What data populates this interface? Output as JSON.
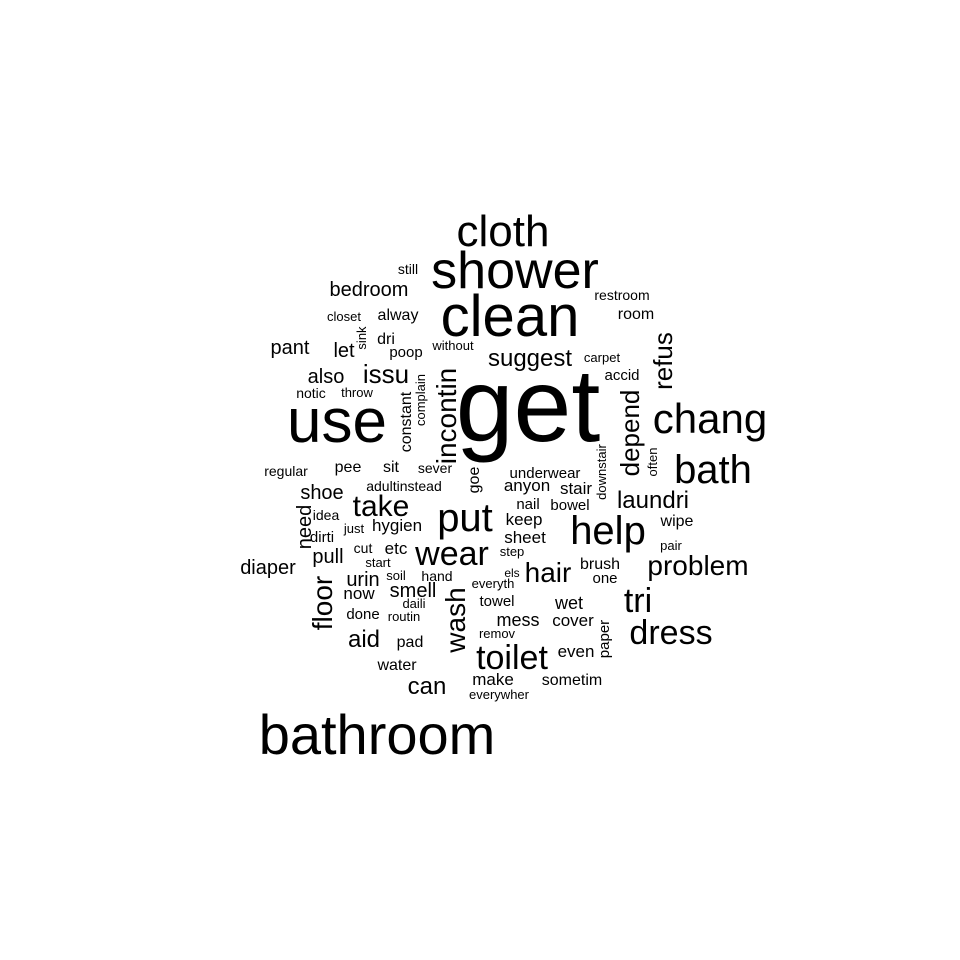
{
  "ink_color": "#000000",
  "background_color": "#ffffff",
  "words": [
    "get",
    "use",
    "clean",
    "shower",
    "cloth",
    "bathroom",
    "chang",
    "bath",
    "help",
    "put",
    "wear",
    "toilet",
    "dress",
    "tri",
    "take",
    "problem",
    "hair",
    "wash",
    "floor",
    "laundri",
    "incontin",
    "depend",
    "refus",
    "issu",
    "suggest",
    "bedroom",
    "pant",
    "can",
    "aid",
    "also",
    "diaper",
    "let",
    "pull",
    "need",
    "shoe",
    "urin",
    "etc",
    "smell",
    "now",
    "hygien",
    "keep",
    "sheet",
    "wet",
    "mess",
    "cover",
    "even",
    "make",
    "sometim",
    "anyon",
    "stair",
    "underwear",
    "bowel",
    "nail",
    "wipe",
    "brush",
    "one",
    "towel",
    "water",
    "pad",
    "done",
    "room",
    "alway",
    "dri",
    "poop",
    "constant",
    "still",
    "restroom",
    "closet",
    "sink",
    "without",
    "complain",
    "carpet",
    "accid",
    "notic",
    "throw",
    "regular",
    "pee",
    "sit",
    "sever",
    "goe",
    "adultinstead",
    "idea",
    "just",
    "dirti",
    "cut",
    "start",
    "step",
    "els",
    "everyth",
    "soil",
    "hand",
    "daili",
    "routin",
    "remov",
    "paper",
    "everywher",
    "downstair",
    "often",
    "pair"
  ]
}
